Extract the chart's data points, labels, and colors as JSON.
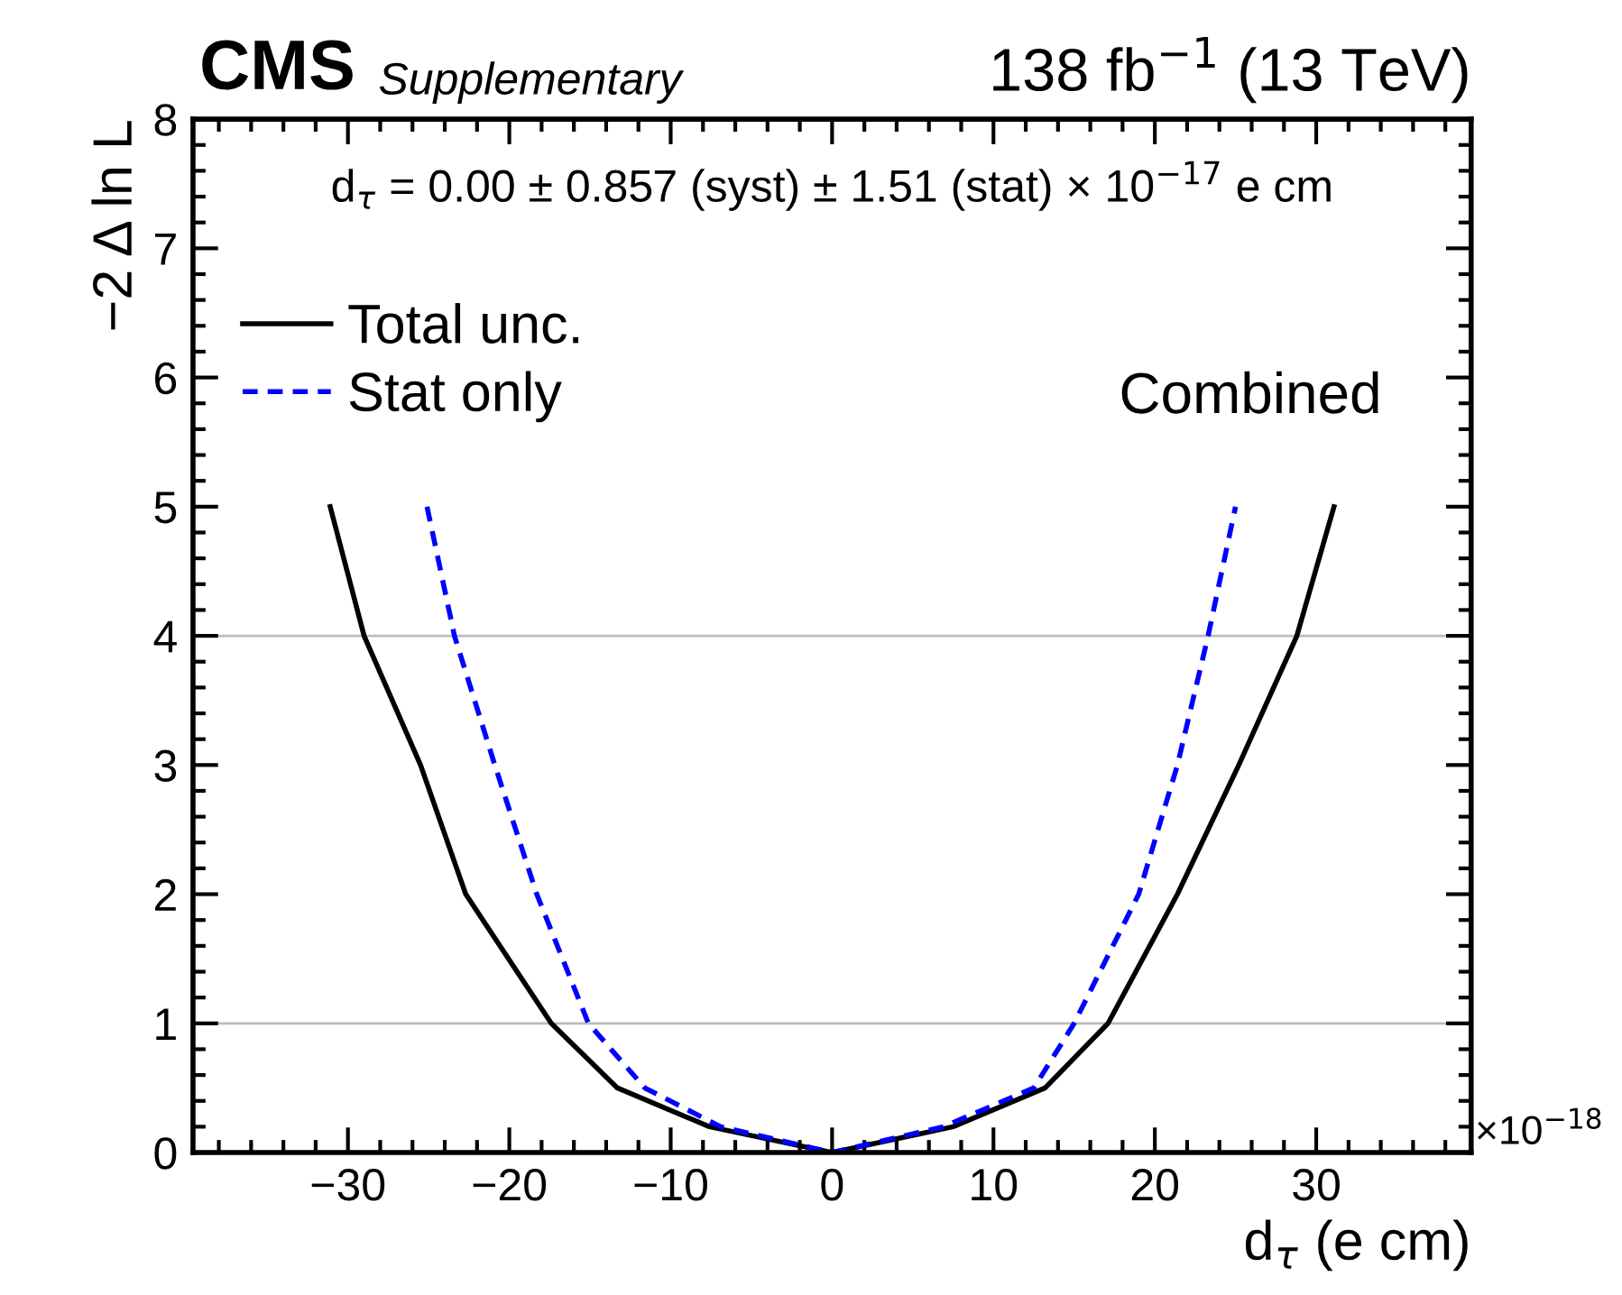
{
  "chart_data": {
    "type": "line",
    "xlabel": "d$_{τ}$ (e cm)",
    "ylabel": "−2 Δ ln L",
    "annotations": [
      "CMS",
      "Supplementary",
      "138 fb$^{−1}$ (13 TeV)",
      "d$_{τ}$ = 0.00 ± 0.857 (syst) ± 1.51 (stat) × 10$^{−17}$ e cm",
      "Combined",
      "×10$^{−18}$"
    ],
    "series": [
      {
        "name": "Total unc.",
        "color": "#000000",
        "line_style": "solid",
        "x": [
          -31.1,
          -29.0,
          -25.5,
          -22.7,
          -17.4,
          -13.3,
          -7.6,
          0,
          7.5,
          13.2,
          17.1,
          21.4,
          25.2,
          28.8,
          31.1
        ],
        "values": [
          5,
          4,
          3,
          2,
          1,
          0.5,
          0.2,
          0,
          0.2,
          0.5,
          1,
          2,
          3,
          4,
          5
        ]
      },
      {
        "name": "Stat only",
        "color": "#0000ff",
        "line_style": "dashed",
        "x": [
          -25.1,
          -23.4,
          -20.9,
          -18.3,
          -15.1,
          -11.6,
          -6.9,
          0,
          6.9,
          12.5,
          15.0,
          19.0,
          21.4,
          23.3,
          25.0
        ],
        "values": [
          5,
          4,
          3,
          2,
          1,
          0.5,
          0.2,
          0,
          0.2,
          0.5,
          1,
          2,
          3,
          4,
          5
        ]
      }
    ],
    "ref_lines": [
      {
        "axis": "y",
        "value": 1,
        "color": "#bbbbbb"
      },
      {
        "axis": "y",
        "value": 4,
        "color": "#bbbbbb"
      }
    ],
    "xlim": [
      -39.6,
      39.6
    ],
    "xticks": [
      {
        "value": -30,
        "label": "−30"
      },
      {
        "value": -20,
        "label": "−20"
      },
      {
        "value": -10,
        "label": "−10"
      },
      0,
      10,
      20,
      30
    ],
    "ylim": [
      0,
      8
    ],
    "yticks": [
      0,
      1,
      2,
      3,
      4,
      5,
      6,
      7,
      8
    ],
    "grid": false,
    "legend": "top left"
  }
}
